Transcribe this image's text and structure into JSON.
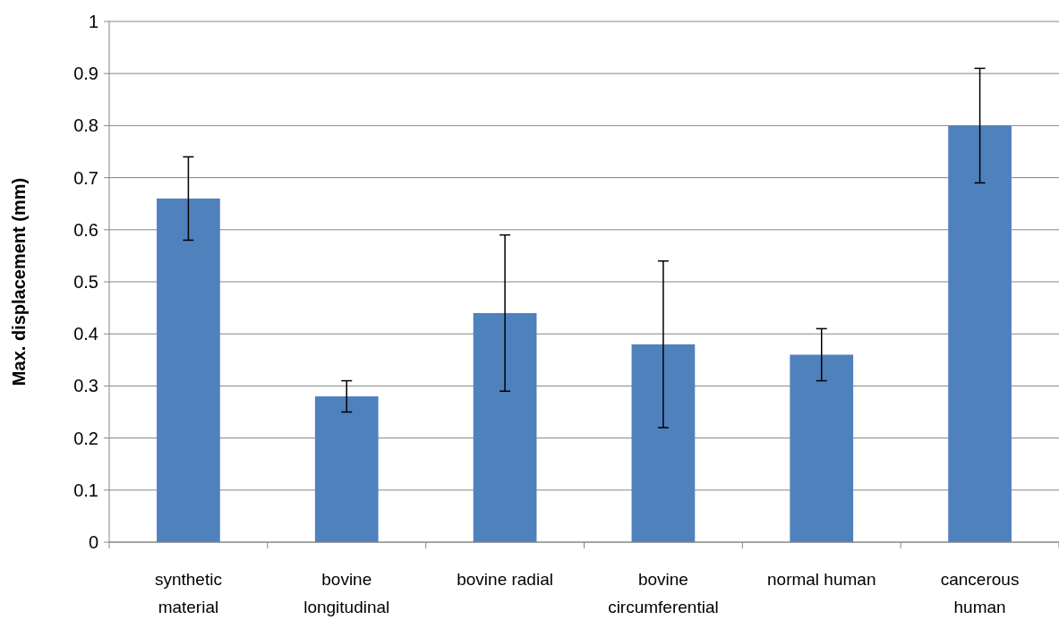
{
  "chart_data": {
    "type": "bar",
    "ylabel": "Max. displacement (mm)",
    "categories": [
      "synthetic material",
      "bovine longitudinal",
      "bovine radial",
      "bovine circumferential",
      "normal human",
      "cancerous human"
    ],
    "values": [
      0.66,
      0.28,
      0.44,
      0.38,
      0.36,
      0.8
    ],
    "errors": [
      0.08,
      0.03,
      0.15,
      0.16,
      0.05,
      0.11
    ],
    "color": "#4f81bd",
    "ylim": [
      0,
      1
    ],
    "yticks": [
      0,
      0.1,
      0.2,
      0.3,
      0.4,
      0.5,
      0.6,
      0.7,
      0.8,
      0.9,
      1
    ],
    "grid": "y"
  }
}
